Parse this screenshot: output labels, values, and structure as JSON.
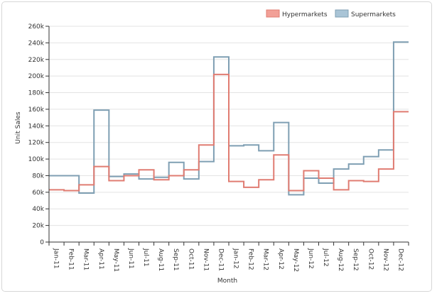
{
  "colors": {
    "hypermarkets_line": "#e07c72",
    "hypermarkets_swatch": "#f2a097",
    "supermarkets_line": "#7f9fb3",
    "supermarkets_swatch": "#a9c4d6",
    "grid": "#e3e3e3",
    "axis": "#333333"
  },
  "chart_data": {
    "type": "line",
    "step": true,
    "xlabel": "Month",
    "ylabel": "Unit Sales",
    "ylim": [
      0,
      260000
    ],
    "y_ticks": [
      0,
      20000,
      40000,
      60000,
      80000,
      100000,
      120000,
      140000,
      160000,
      180000,
      200000,
      220000,
      240000,
      260000
    ],
    "y_tick_labels": [
      "0",
      "20k",
      "40k",
      "60k",
      "80k",
      "100k",
      "120k",
      "140k",
      "160k",
      "180k",
      "200k",
      "220k",
      "240k",
      "260k"
    ],
    "grid": true,
    "legend_position": "top-right",
    "categories": [
      "Jan-11",
      "Feb-11",
      "Mar-11",
      "Apr-11",
      "May-11",
      "Jun-11",
      "Jul-11",
      "Aug-11",
      "Sep-11",
      "Oct-11",
      "Nov-11",
      "Dec-11",
      "Jan-12",
      "Feb-12",
      "Mar-12",
      "Apr-12",
      "May-12",
      "Jun-12",
      "Jul-12",
      "Aug-12",
      "Sep-12",
      "Oct-12",
      "Nov-12",
      "Dec-12"
    ],
    "series": [
      {
        "name": "Hypermarkets",
        "values": [
          63000,
          62000,
          69000,
          91000,
          74000,
          80000,
          87000,
          75000,
          80000,
          87000,
          117000,
          202000,
          73000,
          66000,
          75000,
          105000,
          62000,
          86000,
          77000,
          63000,
          74000,
          73000,
          88000,
          157000
        ]
      },
      {
        "name": "Supermarkets",
        "values": [
          80000,
          80000,
          59000,
          159000,
          79000,
          82000,
          76000,
          78000,
          96000,
          76000,
          97000,
          223000,
          116000,
          117000,
          110000,
          144000,
          57000,
          77000,
          71000,
          88000,
          94000,
          103000,
          111000,
          241000
        ]
      }
    ]
  }
}
